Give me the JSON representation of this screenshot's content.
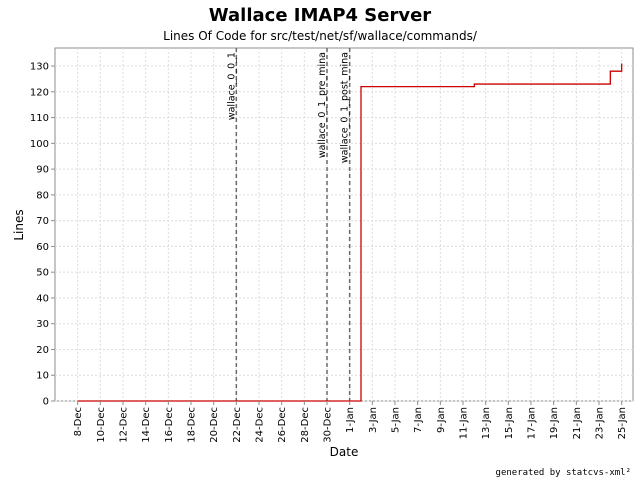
{
  "chart_data": {
    "type": "line",
    "title": "Wallace IMAP4 Server",
    "subtitle": "Lines Of Code for src/test/net/sf/wallace/commands/",
    "xlabel": "Date",
    "ylabel": "Lines",
    "x_range": [
      "2003-12-06",
      "2004-01-26"
    ],
    "ylim": [
      0,
      137
    ],
    "y_ticks": [
      0,
      10,
      20,
      30,
      40,
      50,
      60,
      70,
      80,
      90,
      100,
      110,
      120,
      130
    ],
    "x_ticks": [
      {
        "date": "2003-12-08",
        "label": "8-Dec"
      },
      {
        "date": "2003-12-10",
        "label": "10-Dec"
      },
      {
        "date": "2003-12-12",
        "label": "12-Dec"
      },
      {
        "date": "2003-12-14",
        "label": "14-Dec"
      },
      {
        "date": "2003-12-16",
        "label": "16-Dec"
      },
      {
        "date": "2003-12-18",
        "label": "18-Dec"
      },
      {
        "date": "2003-12-20",
        "label": "20-Dec"
      },
      {
        "date": "2003-12-22",
        "label": "22-Dec"
      },
      {
        "date": "2003-12-24",
        "label": "24-Dec"
      },
      {
        "date": "2003-12-26",
        "label": "26-Dec"
      },
      {
        "date": "2003-12-28",
        "label": "28-Dec"
      },
      {
        "date": "2003-12-30",
        "label": "30-Dec"
      },
      {
        "date": "2004-01-01",
        "label": "1-Jan"
      },
      {
        "date": "2004-01-03",
        "label": "3-Jan"
      },
      {
        "date": "2004-01-05",
        "label": "5-Jan"
      },
      {
        "date": "2004-01-07",
        "label": "7-Jan"
      },
      {
        "date": "2004-01-09",
        "label": "9-Jan"
      },
      {
        "date": "2004-01-11",
        "label": "11-Jan"
      },
      {
        "date": "2004-01-13",
        "label": "13-Jan"
      },
      {
        "date": "2004-01-15",
        "label": "15-Jan"
      },
      {
        "date": "2004-01-17",
        "label": "17-Jan"
      },
      {
        "date": "2004-01-19",
        "label": "19-Jan"
      },
      {
        "date": "2004-01-21",
        "label": "21-Jan"
      },
      {
        "date": "2004-01-23",
        "label": "23-Jan"
      },
      {
        "date": "2004-01-25",
        "label": "25-Jan"
      }
    ],
    "grid": true,
    "series": [
      {
        "color": "#cc0000",
        "step": true,
        "points": [
          {
            "x": "2003-12-08",
            "y": 0
          },
          {
            "x": "2004-01-02",
            "y": 0
          },
          {
            "x": "2004-01-02",
            "y": 122
          },
          {
            "x": "2004-01-12",
            "y": 122
          },
          {
            "x": "2004-01-12",
            "y": 123
          },
          {
            "x": "2004-01-24",
            "y": 123
          },
          {
            "x": "2004-01-24",
            "y": 128
          },
          {
            "x": "2004-01-25",
            "y": 128
          },
          {
            "x": "2004-01-25",
            "y": 131
          }
        ]
      }
    ],
    "markers": [
      {
        "x": "2003-12-22",
        "label": "wallace_0_0_1"
      },
      {
        "x": "2003-12-30",
        "label": "wallace_0_1_pre_mina"
      },
      {
        "x": "2004-01-01",
        "label": "wallace_0_1_post_mina"
      }
    ]
  },
  "footer": {
    "credit": "generated by statcvs-xml²"
  }
}
